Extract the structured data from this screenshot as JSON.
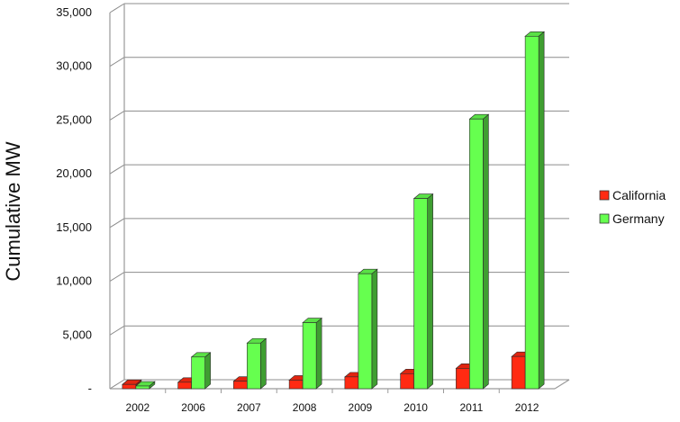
{
  "chart_data": {
    "type": "bar",
    "title": "",
    "xlabel": "",
    "ylabel": "Cumulative MW",
    "categories": [
      "2002",
      "2006",
      "2007",
      "2008",
      "2009",
      "2010",
      "2011",
      "2012"
    ],
    "series": [
      {
        "name": "California",
        "color": "#ff2a12",
        "values": [
          400,
          600,
          700,
          800,
          1100,
          1400,
          1900,
          3000
        ]
      },
      {
        "name": "Germany",
        "color": "#66ff4f",
        "values": [
          250,
          2950,
          4250,
          6150,
          10700,
          17700,
          25100,
          32800
        ]
      }
    ],
    "ylim": [
      0,
      35000
    ],
    "yticks": [
      {
        "value": 0,
        "label": "-"
      },
      {
        "value": 5000,
        "label": "5,000"
      },
      {
        "value": 10000,
        "label": "10,000"
      },
      {
        "value": 15000,
        "label": "15,000"
      },
      {
        "value": 20000,
        "label": "20,000"
      },
      {
        "value": 25000,
        "label": "25,000"
      },
      {
        "value": 30000,
        "label": "30,000"
      },
      {
        "value": 35000,
        "label": "35,000"
      }
    ],
    "grid": true,
    "legend": "right",
    "style": "3d-clustered-column"
  },
  "colors": {
    "grid": "#8c8c8c",
    "axis": "#9a9a9a",
    "bar_outline": "#2b2b2b"
  }
}
